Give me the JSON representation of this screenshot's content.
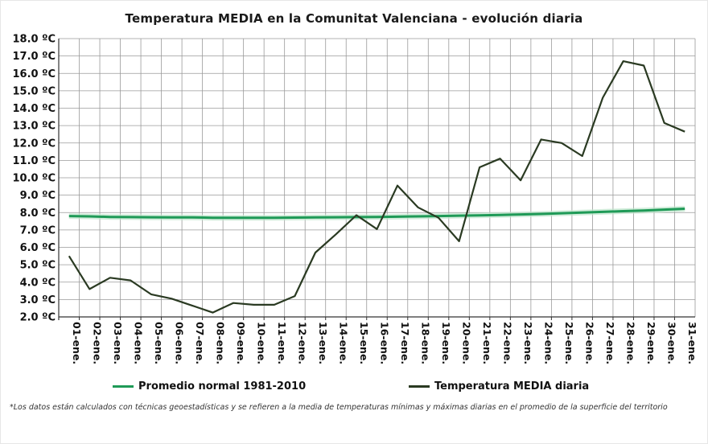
{
  "chart_data": {
    "type": "line",
    "title": "Temperatura  MEDIA en la Comunitat Valenciana - evolución diaria",
    "xlabel": "",
    "ylabel": "",
    "categories": [
      "01-ene.",
      "02-ene.",
      "03-ene.",
      "04-ene.",
      "05-ene.",
      "06-ene.",
      "07-ene.",
      "08-ene.",
      "09-ene.",
      "10-ene.",
      "11-ene.",
      "12-ene.",
      "13-ene.",
      "14-ene.",
      "15-ene.",
      "16-ene.",
      "17-ene.",
      "18-ene.",
      "19-ene.",
      "20-ene.",
      "21-ene.",
      "22-ene.",
      "23-ene.",
      "24-ene.",
      "25-ene.",
      "26-ene.",
      "27-ene.",
      "28-ene.",
      "29-ene.",
      "30-ene.",
      "31-ene."
    ],
    "yticks": [
      "2.0 ºC",
      "3.0 ºC",
      "4.0 ºC",
      "5.0 ºC",
      "6.0 ºC",
      "7.0 ºC",
      "8.0 ºC",
      "9.0 ºC",
      "10.0 ºC",
      "11.0 ºC",
      "12.0 ºC",
      "13.0 ºC",
      "14.0 ºC",
      "15.0 ºC",
      "16.0 ºC",
      "17.0 ºC",
      "18.0 ºC"
    ],
    "ylim": [
      2,
      18
    ],
    "grid": true,
    "legend_position": "bottom",
    "series": [
      {
        "name": "Promedio normal 1981-2010",
        "color": "#1f9a57",
        "values": [
          7.8,
          7.78,
          7.75,
          7.74,
          7.73,
          7.72,
          7.72,
          7.7,
          7.7,
          7.7,
          7.7,
          7.71,
          7.72,
          7.73,
          7.74,
          7.75,
          7.76,
          7.78,
          7.8,
          7.82,
          7.84,
          7.86,
          7.89,
          7.92,
          7.96,
          8.0,
          8.04,
          8.08,
          8.12,
          8.17,
          8.22
        ]
      },
      {
        "name": "Temperatura MEDIA diaria",
        "color": "#2a3a22",
        "values": [
          5.5,
          3.6,
          4.25,
          4.1,
          3.3,
          3.05,
          2.65,
          2.25,
          2.8,
          2.7,
          2.7,
          3.2,
          5.7,
          6.75,
          7.85,
          7.05,
          9.55,
          8.3,
          7.7,
          6.35,
          10.6,
          11.1,
          9.85,
          12.2,
          12.0,
          11.25,
          14.6,
          16.7,
          16.45,
          13.15,
          12.65
        ]
      }
    ]
  },
  "footnote": "*Los datos están calculados con técnicas geoestadísticas y se refieren a la media de temperaturas mínimas y máximas diarias en el promedio de la superficie del territorio"
}
